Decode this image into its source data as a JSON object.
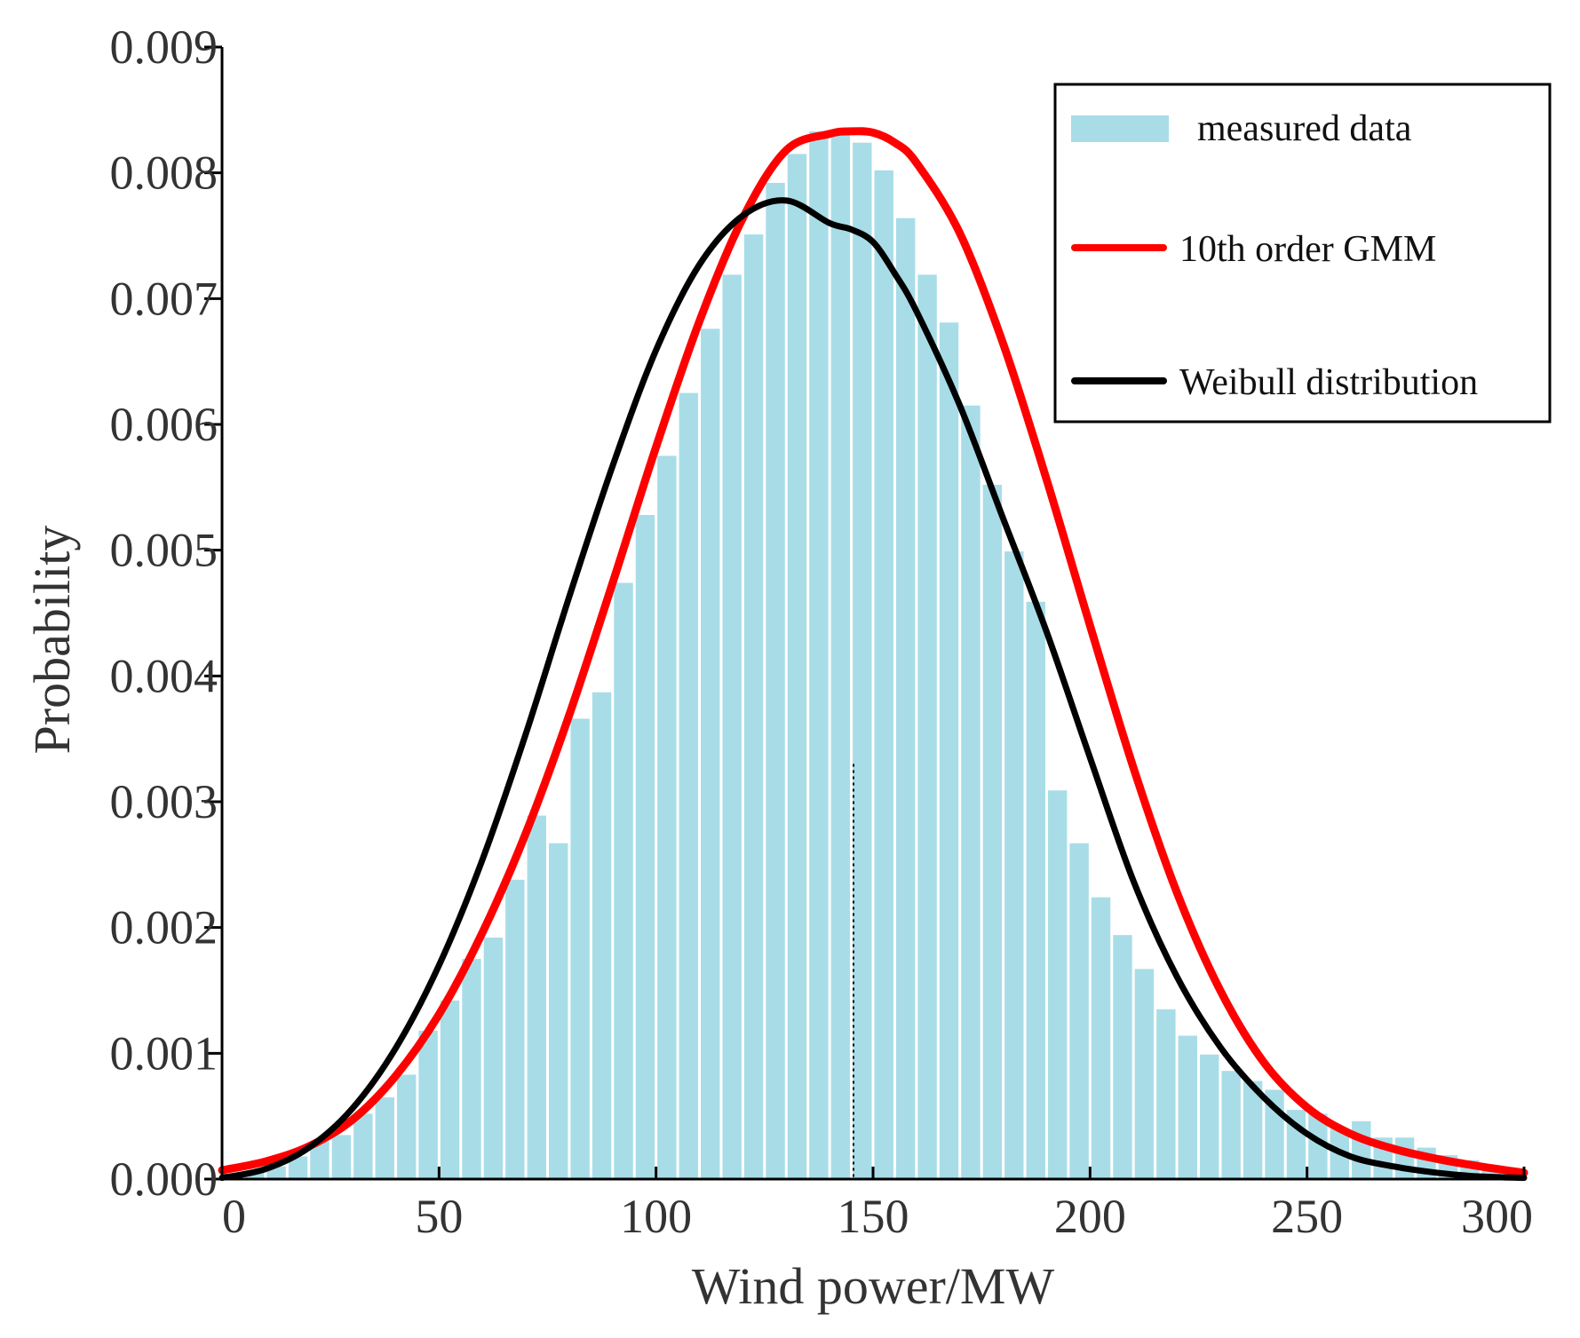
{
  "chart_data": {
    "type": "bar+line",
    "title": "",
    "xlabel": "Wind power/MW",
    "ylabel": "Probability",
    "xlim": [
      0,
      300
    ],
    "ylim": [
      0,
      0.009
    ],
    "xticks": [
      "0",
      "50",
      "100",
      "150",
      "200",
      "250",
      "300"
    ],
    "yticks": [
      "0.000",
      "0.001",
      "0.002",
      "0.003",
      "0.004",
      "0.005",
      "0.006",
      "0.007",
      "0.008",
      "0.009"
    ],
    "histogram": {
      "name": "measured data",
      "color": "#a8dde8",
      "bin_width": 5,
      "bin_start": 0,
      "values": [
        2e-05,
        5e-05,
        0.0001,
        0.00018,
        0.0003,
        0.00035,
        0.00052,
        0.00065,
        0.00083,
        0.00118,
        0.00142,
        0.00175,
        0.00192,
        0.00238,
        0.00289,
        0.00267,
        0.00366,
        0.00387,
        0.00474,
        0.00528,
        0.00575,
        0.00625,
        0.00676,
        0.00719,
        0.00751,
        0.00792,
        0.00815,
        0.00833,
        0.00833,
        0.00824,
        0.00802,
        0.00764,
        0.00719,
        0.00681,
        0.00615,
        0.00552,
        0.00499,
        0.00459,
        0.00309,
        0.00267,
        0.00224,
        0.00194,
        0.00167,
        0.00135,
        0.00114,
        0.00099,
        0.00086,
        0.00078,
        0.00071,
        0.00055,
        0.00052,
        0.0004,
        0.00046,
        0.00033,
        0.00033,
        0.00025,
        0.00019,
        0.00015,
        9e-05,
        3e-05
      ]
    },
    "series": [
      {
        "name": "10th order GMM",
        "color": "#ff0000",
        "x": [
          0,
          10,
          20,
          30,
          40,
          50,
          60,
          70,
          80,
          90,
          100,
          110,
          120,
          130,
          140,
          145,
          150,
          155,
          160,
          170,
          180,
          190,
          200,
          210,
          220,
          230,
          240,
          250,
          260,
          270,
          280,
          290,
          300
        ],
        "y": [
          7e-05,
          0.00014,
          0.00026,
          0.00047,
          0.00082,
          0.00131,
          0.00196,
          0.00275,
          0.00369,
          0.00474,
          0.00582,
          0.00682,
          0.00764,
          0.00818,
          0.00831,
          0.00833,
          0.00832,
          0.00824,
          0.00808,
          0.00752,
          0.00664,
          0.00556,
          0.0044,
          0.00327,
          0.00228,
          0.0015,
          0.00093,
          0.00057,
          0.00036,
          0.00024,
          0.00016,
          0.0001,
          5e-05
        ]
      },
      {
        "name": "Weibull distribution",
        "color": "#000000",
        "x": [
          0,
          10,
          20,
          30,
          40,
          50,
          60,
          70,
          80,
          90,
          100,
          110,
          120,
          130,
          140,
          145,
          150,
          155,
          160,
          170,
          180,
          190,
          200,
          210,
          220,
          230,
          240,
          250,
          260,
          270,
          280,
          290,
          300
        ],
        "y": [
          1e-05,
          8e-05,
          0.00025,
          0.00056,
          0.00104,
          0.0017,
          0.00254,
          0.00354,
          0.00463,
          0.00567,
          0.00659,
          0.00727,
          0.00766,
          0.00778,
          0.0076,
          0.00755,
          0.00745,
          0.0072,
          0.0069,
          0.00615,
          0.00525,
          0.00435,
          0.00335,
          0.00237,
          0.00161,
          0.00105,
          0.00065,
          0.00036,
          0.00018,
          0.0001,
          5e-05,
          2e-05,
          1e-05
        ]
      }
    ],
    "legend": {
      "placement": "top-right",
      "entries": [
        "measured data",
        "10th order GMM",
        "Weibull distribution"
      ]
    }
  }
}
